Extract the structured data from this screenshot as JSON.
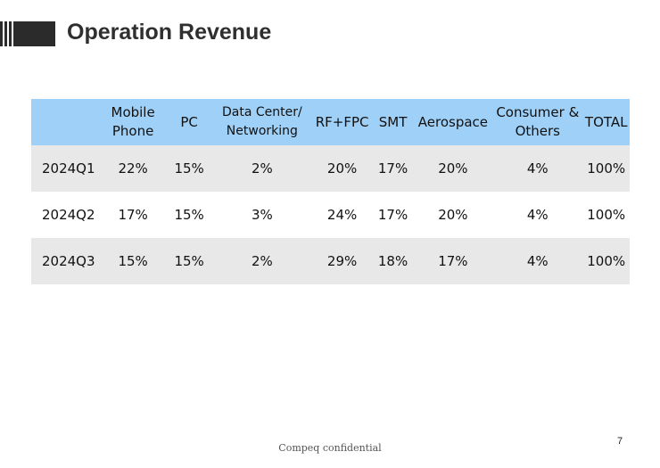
{
  "header": {
    "title": "Operation Revenue"
  },
  "table": {
    "columns": [
      "",
      "Mobile Phone",
      "PC",
      "Data Center/ Networking",
      "RF+FPC",
      "SMT",
      "Aerospace",
      "Consumer & Others",
      "TOTAL"
    ],
    "rows": [
      {
        "label": "2024Q1",
        "values": [
          "22%",
          "15%",
          "2%",
          "20%",
          "17%",
          "20%",
          "4%",
          "100%"
        ]
      },
      {
        "label": "2024Q2",
        "values": [
          "17%",
          "15%",
          "3%",
          "24%",
          "17%",
          "20%",
          "4%",
          "100%"
        ]
      },
      {
        "label": "2024Q3",
        "values": [
          "15%",
          "15%",
          "2%",
          "29%",
          "18%",
          "17%",
          "4%",
          "100%"
        ]
      }
    ]
  },
  "footer": {
    "text": "Compeq confidential",
    "page_number": "7"
  },
  "colors": {
    "header_bg": "#9fd0f7",
    "row_shade": "#e8e8e8",
    "title_bar": "#2b2b2b"
  }
}
